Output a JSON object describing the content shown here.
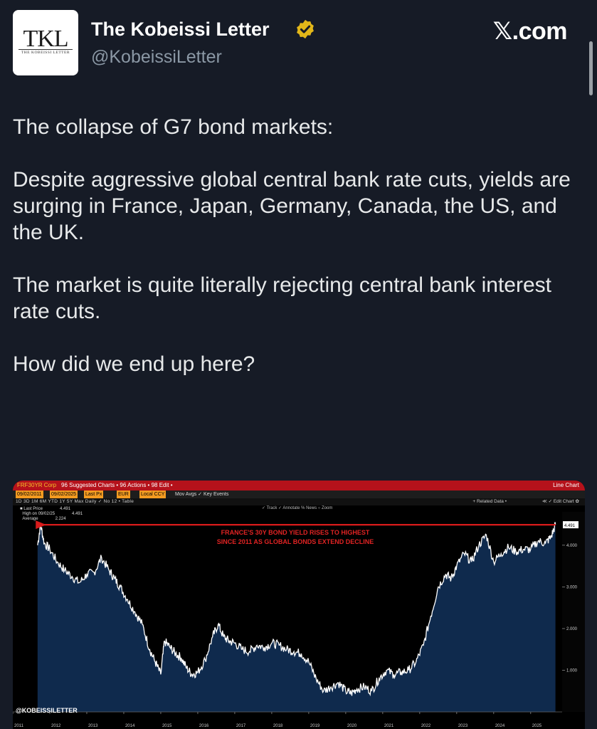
{
  "header": {
    "avatar_monogram": "TKL",
    "avatar_subtitle": "THE KOBEISSI LETTER",
    "name": "The Kobeissi Letter",
    "handle": "@KobeissiLetter",
    "brand": "𝕏.com",
    "verified_color": "#e2b719"
  },
  "post": {
    "p1": "The collapse of G7 bond markets:",
    "p2": "Despite aggressive global central bank rate cuts, yields are surging in France, Japan, Germany, Canada, the US, and the UK.",
    "p3": "The market is quite literally rejecting central bank interest rate cuts.",
    "p4": "How did we end up here?"
  },
  "terminal": {
    "ticker": "FRF30YR Corp",
    "menu": "96 Suggested Charts  •  96 Actions  •  98 Edit  •",
    "chart_type": "Line Chart",
    "date_from": "09/02/2011",
    "date_to": "09/02/2025",
    "field": "Last Px",
    "ccy": "EUR",
    "local": "Local CCY",
    "toolbar2": "Mov Avgs  ✓  Key Events",
    "ranges": "1D  3D  1M  6M  YTD  1Y  5Y  Max  Daily  ✓  No  12  •  Table",
    "related": "+ Related Data •",
    "edit_chart": "≪ ✓ Edit Chart ✿",
    "tools": "✓ Track  ✓ Annotate  % News  ○ Zoom",
    "legend": [
      {
        "label": "Last Price",
        "value": "4.491"
      },
      {
        "label": "High on 09/02/25",
        "value": "4.491"
      },
      {
        "label": "Average",
        "value": "2.224"
      }
    ],
    "annotation_line1": "FRANCE'S 30Y BOND YIELD RISES TO HIGHEST",
    "annotation_line2": "SINCE 2011 AS GLOBAL BONDS EXTEND DECLINE",
    "watermark": "@KOBEISSILETTER",
    "last_value_tag": "4.491"
  },
  "chart_data": {
    "type": "area",
    "title": "",
    "xlabel": "",
    "ylabel": "",
    "x_ticks": [
      "2011",
      "2012",
      "2013",
      "2014",
      "2015",
      "2016",
      "2017",
      "2018",
      "2019",
      "2020",
      "2021",
      "2022",
      "2023",
      "2024",
      "2025"
    ],
    "y_ticks": [
      "1.000",
      "2.000",
      "3.000",
      "4.000"
    ],
    "ylim": [
      0,
      4.8
    ],
    "x": [
      2011.67,
      2011.75,
      2011.85,
      2012.0,
      2012.2,
      2012.4,
      2012.6,
      2012.8,
      2013.0,
      2013.2,
      2013.4,
      2013.6,
      2013.75,
      2013.9,
      2014.1,
      2014.3,
      2014.5,
      2014.7,
      2014.85,
      2015.0,
      2015.1,
      2015.25,
      2015.4,
      2015.55,
      2015.7,
      2015.85,
      2016.0,
      2016.2,
      2016.4,
      2016.55,
      2016.7,
      2016.85,
      2017.0,
      2017.2,
      2017.4,
      2017.6,
      2017.8,
      2018.0,
      2018.2,
      2018.4,
      2018.6,
      2018.8,
      2019.0,
      2019.2,
      2019.4,
      2019.6,
      2019.8,
      2020.0,
      2020.15,
      2020.3,
      2020.5,
      2020.7,
      2020.9,
      2021.1,
      2021.3,
      2021.5,
      2021.7,
      2021.9,
      2022.1,
      2022.3,
      2022.5,
      2022.7,
      2022.85,
      2023.0,
      2023.2,
      2023.4,
      2023.6,
      2023.8,
      2024.0,
      2024.2,
      2024.4,
      2024.6,
      2024.8,
      2025.0,
      2025.2,
      2025.4,
      2025.55,
      2025.67
    ],
    "values": [
      4.0,
      4.5,
      4.05,
      3.9,
      3.6,
      3.4,
      3.25,
      3.1,
      3.3,
      3.35,
      3.7,
      3.4,
      3.2,
      3.0,
      2.7,
      2.4,
      2.1,
      1.5,
      1.2,
      0.9,
      1.7,
      1.55,
      1.4,
      1.3,
      1.05,
      0.9,
      0.95,
      1.25,
      1.8,
      2.1,
      1.8,
      1.7,
      1.65,
      1.5,
      1.45,
      1.6,
      1.55,
      1.65,
      1.6,
      1.5,
      1.45,
      1.4,
      1.2,
      0.8,
      0.5,
      0.6,
      0.7,
      0.5,
      0.45,
      0.55,
      0.6,
      0.5,
      0.8,
      1.0,
      0.9,
      0.95,
      1.0,
      1.2,
      1.6,
      2.3,
      3.0,
      3.3,
      3.2,
      3.5,
      3.8,
      3.6,
      4.0,
      4.25,
      3.6,
      3.8,
      3.95,
      3.85,
      3.9,
      3.9,
      4.1,
      4.05,
      4.2,
      4.49
    ],
    "high_line": 4.491,
    "colors": {
      "fill": "#0f2a4d",
      "line": "#ffffff",
      "high_line": "#d81b1b",
      "annotation": "#e02323",
      "plot_bg": "#000000"
    }
  }
}
